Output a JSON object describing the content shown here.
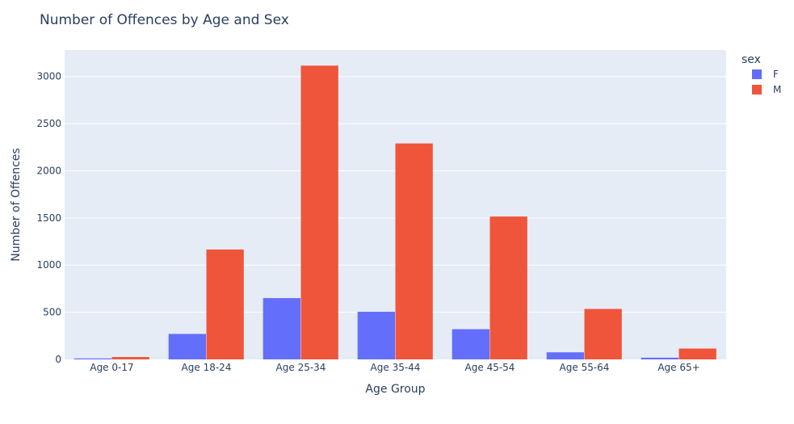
{
  "chart_data": {
    "type": "bar",
    "title": "Number of Offences by Age and Sex",
    "xlabel": "Age Group",
    "ylabel": "Number of Offences",
    "categories": [
      "Age 0-17",
      "Age 18-24",
      "Age 25-34",
      "Age 35-44",
      "Age 45-54",
      "Age 55-64",
      "Age 65+"
    ],
    "series": [
      {
        "name": "F",
        "color": "#636efa",
        "values": [
          10,
          270,
          650,
          505,
          320,
          75,
          18
        ]
      },
      {
        "name": "M",
        "color": "#ef553b",
        "values": [
          25,
          1165,
          3115,
          2290,
          1515,
          535,
          115
        ]
      }
    ],
    "ylim": [
      0,
      3280
    ],
    "yticks": [
      0,
      500,
      1000,
      1500,
      2000,
      2500,
      3000
    ],
    "legend": {
      "title": "sex",
      "placement": "top-right"
    },
    "grid": true,
    "plot_background": "#e5ecf6",
    "grid_color": "#ffffff"
  }
}
